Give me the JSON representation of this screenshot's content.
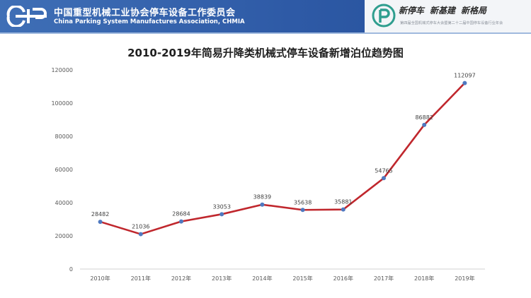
{
  "header": {
    "org_name_cn": "中国重型机械工业协会停车设备工作委员会",
    "org_name_en": "China Parking System Manufactures Association, CHMIA",
    "slogans": [
      "新停车",
      "新基建",
      "新格局"
    ],
    "sub_slogan": "第四届全国机械式停车大会暨第二十二届中国停车设备行业年会"
  },
  "colors": {
    "banner": "#2e5aa6",
    "line": "#c0272d",
    "marker": "#4f79c0"
  },
  "chart_data": {
    "type": "line",
    "title": "2010-2019年简易升降类机械式停车设备新增泊位趋势图",
    "categories": [
      "2010年",
      "2011年",
      "2012年",
      "2013年",
      "2014年",
      "2015年",
      "2016年",
      "2017年",
      "2018年",
      "2019年"
    ],
    "values": [
      28482,
      21036,
      28684,
      33053,
      38839,
      35638,
      35881,
      54765,
      86882,
      112097
    ],
    "value_labels": [
      "28482",
      "21036",
      "28684",
      "33053",
      "38839",
      "35638",
      "35881",
      "54765",
      "86882",
      "112097"
    ],
    "yticks": [
      "0",
      "20000",
      "40000",
      "60000",
      "80000",
      "100000",
      "120000"
    ],
    "ylim": [
      0,
      120000
    ],
    "grid": false,
    "legend": "none"
  }
}
